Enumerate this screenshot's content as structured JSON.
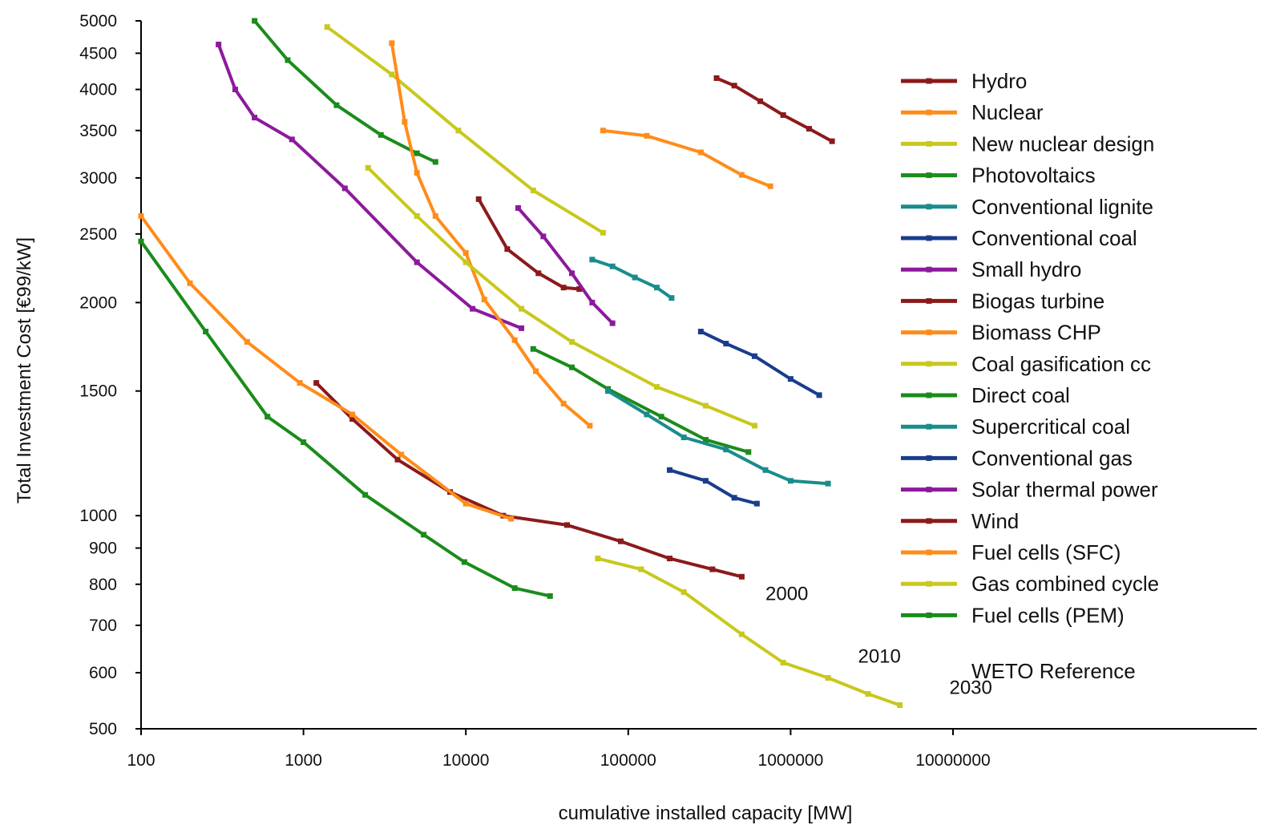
{
  "chart_data": {
    "type": "line",
    "title": "",
    "xlabel": "cumulative installed capacity [MW]",
    "ylabel": "Total Investment Cost [€99/kW]",
    "xscale": "log",
    "yscale": "log",
    "xlim": [
      100,
      10000000
    ],
    "ylim": [
      500,
      5000
    ],
    "xticks": [
      {
        "value": 100,
        "label": "100"
      },
      {
        "value": 1000,
        "label": "1000"
      },
      {
        "value": 10000,
        "label": "10000"
      },
      {
        "value": 100000,
        "label": "100000"
      },
      {
        "value": 1000000,
        "label": "1000000"
      },
      {
        "value": 10000000,
        "label": "10000000"
      }
    ],
    "yticks": [
      {
        "value": 500,
        "label": "500"
      },
      {
        "value": 600,
        "label": "600"
      },
      {
        "value": 700,
        "label": "700"
      },
      {
        "value": 800,
        "label": "800"
      },
      {
        "value": 900,
        "label": "900"
      },
      {
        "value": 1000,
        "label": "1000"
      },
      {
        "value": 1500,
        "label": "1500"
      },
      {
        "value": 2000,
        "label": "2000"
      },
      {
        "value": 2500,
        "label": "2500"
      },
      {
        "value": 3000,
        "label": "3000"
      },
      {
        "value": 3500,
        "label": "3500"
      },
      {
        "value": 4000,
        "label": "4000"
      },
      {
        "value": 4500,
        "label": "4500"
      },
      {
        "value": 5000,
        "label": "5000"
      }
    ],
    "grid": false,
    "legend_position": "right",
    "legend_note": "WETO Reference",
    "annotations": [
      {
        "text": "2000",
        "x": 700000,
        "y": 760
      },
      {
        "text": "2010",
        "x": 2600000,
        "y": 620
      },
      {
        "text": "2030",
        "x": 9500000,
        "y": 560
      }
    ],
    "series": [
      {
        "name": "Hydro",
        "color": "#8b1a1a",
        "x": [
          350000,
          450000,
          650000,
          900000,
          1300000,
          1800000
        ],
        "y": [
          4150,
          4050,
          3850,
          3680,
          3520,
          3380
        ]
      },
      {
        "name": "Nuclear",
        "color": "#ff8c1a",
        "x": [
          70000,
          130000,
          280000,
          500000,
          750000
        ],
        "y": [
          3500,
          3440,
          3260,
          3030,
          2920
        ]
      },
      {
        "name": "New nuclear design",
        "color": "#c8c81e",
        "x": [
          1400,
          3500,
          9000,
          26000,
          70000
        ],
        "y": [
          4900,
          4200,
          3500,
          2880,
          2510
        ]
      },
      {
        "name": "Photovoltaics",
        "color": "#1a8c1a",
        "x": [
          500,
          800,
          1600,
          3000,
          5000,
          6500
        ],
        "y": [
          5000,
          4400,
          3800,
          3450,
          3250,
          3160
        ]
      },
      {
        "name": "Conventional lignite",
        "color": "#1a8c8c",
        "x": [
          60000,
          80000,
          110000,
          150000,
          185000
        ],
        "y": [
          2300,
          2250,
          2170,
          2100,
          2030
        ]
      },
      {
        "name": "Conventional coal",
        "color": "#1a3c8c",
        "x": [
          280000,
          400000,
          600000,
          1000000,
          1500000
        ],
        "y": [
          1820,
          1750,
          1680,
          1560,
          1480
        ]
      },
      {
        "name": "Small hydro",
        "color": "#8c1a9c",
        "x": [
          300,
          380,
          500,
          850,
          1800,
          5000,
          11000,
          22000
        ],
        "y": [
          4630,
          4000,
          3650,
          3400,
          2900,
          2280,
          1960,
          1840
        ]
      },
      {
        "name": "Biogas turbine",
        "color": "#8b1a1a",
        "x": [
          12000,
          18000,
          28000,
          40000,
          50000
        ],
        "y": [
          2800,
          2380,
          2200,
          2100,
          2090
        ]
      },
      {
        "name": "Biomass CHP",
        "color": "#ff8c1a",
        "x": [
          3500,
          4200,
          5000,
          6500,
          10000,
          13000,
          20000,
          27000,
          40000,
          58000
        ],
        "y": [
          4650,
          3600,
          3050,
          2650,
          2350,
          2020,
          1770,
          1600,
          1440,
          1340
        ]
      },
      {
        "name": "Coal gasification cc",
        "color": "#c8c81e",
        "x": [
          2500,
          5000,
          10000,
          22000,
          45000,
          150000,
          300000,
          600000
        ],
        "y": [
          3100,
          2650,
          2280,
          1960,
          1760,
          1520,
          1430,
          1340
        ]
      },
      {
        "name": "Direct coal",
        "color": "#1a8c1a",
        "x": [
          26000,
          45000,
          75000,
          160000,
          300000,
          550000
        ],
        "y": [
          1720,
          1620,
          1510,
          1380,
          1280,
          1230
        ]
      },
      {
        "name": "Supercritical coal",
        "color": "#1a8c8c",
        "x": [
          75000,
          130000,
          220000,
          400000,
          700000,
          1000000,
          1700000
        ],
        "y": [
          1500,
          1390,
          1290,
          1240,
          1160,
          1120,
          1110
        ]
      },
      {
        "name": "Conventional gas",
        "color": "#1a3c8c",
        "x": [
          180000,
          300000,
          450000,
          620000
        ],
        "y": [
          1160,
          1120,
          1060,
          1040
        ]
      },
      {
        "name": "Solar thermal power",
        "color": "#8c1a9c",
        "x": [
          21000,
          30000,
          45000,
          60000,
          80000
        ],
        "y": [
          2720,
          2480,
          2200,
          2000,
          1870
        ]
      },
      {
        "name": "Wind",
        "color": "#8b1a1a",
        "x": [
          1200,
          2000,
          3800,
          8000,
          17000,
          42000,
          90000,
          180000,
          330000,
          500000
        ],
        "y": [
          1540,
          1370,
          1200,
          1080,
          1000,
          970,
          920,
          870,
          840,
          820
        ]
      },
      {
        "name": "Fuel cells (SFC)",
        "color": "#ff8c1a",
        "x": [
          100,
          200,
          450,
          950,
          2000,
          4000,
          10000,
          19000
        ],
        "y": [
          2650,
          2130,
          1760,
          1540,
          1390,
          1220,
          1040,
          990
        ]
      },
      {
        "name": "Gas combined cycle",
        "color": "#c8c81e",
        "x": [
          65000,
          120000,
          220000,
          500000,
          900000,
          1700000,
          3000000,
          4700000
        ],
        "y": [
          870,
          840,
          780,
          680,
          620,
          590,
          560,
          540
        ]
      },
      {
        "name": "Fuel cells (PEM)",
        "color": "#1a8c1a",
        "x": [
          100,
          250,
          600,
          1000,
          2400,
          5500,
          9800,
          20000,
          33000
        ],
        "y": [
          2440,
          1820,
          1380,
          1270,
          1070,
          940,
          860,
          790,
          770
        ]
      }
    ]
  }
}
